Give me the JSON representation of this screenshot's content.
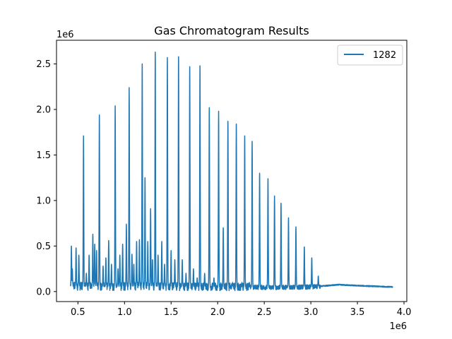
{
  "chart_data": {
    "type": "line",
    "title": "Gas Chromatogram Results",
    "xlabel": "",
    "ylabel": "",
    "x_offset_label": "1e6",
    "y_offset_label": "1e6",
    "xlim": [
      0.27,
      4.03
    ],
    "ylim": [
      -0.11,
      2.76
    ],
    "x_ticks": [
      0.5,
      1.0,
      1.5,
      2.0,
      2.5,
      3.0,
      3.5,
      4.0
    ],
    "x_tick_labels": [
      "0.5",
      "1.0",
      "1.5",
      "2.0",
      "2.5",
      "3.0",
      "3.5",
      "4.0"
    ],
    "y_ticks": [
      0.0,
      0.5,
      1.0,
      1.5,
      2.0,
      2.5
    ],
    "y_tick_labels": [
      "0.0",
      "0.5",
      "1.0",
      "1.5",
      "2.0",
      "2.5"
    ],
    "grid": false,
    "legend_position": "top-right",
    "line_color": "#1f77b4",
    "series": [
      {
        "name": "1282",
        "x_range": [
          0.42,
          3.88
        ],
        "baseline": [
          [
            0.42,
            0.06
          ],
          [
            0.8,
            0.055
          ],
          [
            1.2,
            0.06
          ],
          [
            1.6,
            0.055
          ],
          [
            2.0,
            0.05
          ],
          [
            2.6,
            0.045
          ],
          [
            3.0,
            0.05
          ],
          [
            3.3,
            0.075
          ],
          [
            3.5,
            0.065
          ],
          [
            3.88,
            0.05
          ]
        ],
        "peaks": [
          {
            "x": 0.43,
            "y": 0.5
          },
          {
            "x": 0.44,
            "y": 0.25
          },
          {
            "x": 0.48,
            "y": 0.48
          },
          {
            "x": 0.51,
            "y": 0.4
          },
          {
            "x": 0.56,
            "y": 1.71
          },
          {
            "x": 0.59,
            "y": 0.2
          },
          {
            "x": 0.62,
            "y": 0.4
          },
          {
            "x": 0.66,
            "y": 0.63
          },
          {
            "x": 0.68,
            "y": 0.52
          },
          {
            "x": 0.7,
            "y": 0.45
          },
          {
            "x": 0.73,
            "y": 1.94
          },
          {
            "x": 0.77,
            "y": 0.28
          },
          {
            "x": 0.8,
            "y": 0.37
          },
          {
            "x": 0.83,
            "y": 0.56
          },
          {
            "x": 0.86,
            "y": 0.3
          },
          {
            "x": 0.9,
            "y": 2.04
          },
          {
            "x": 0.93,
            "y": 0.25
          },
          {
            "x": 0.95,
            "y": 0.4
          },
          {
            "x": 0.98,
            "y": 0.52
          },
          {
            "x": 1.02,
            "y": 0.74
          },
          {
            "x": 1.05,
            "y": 2.24
          },
          {
            "x": 1.08,
            "y": 0.41
          },
          {
            "x": 1.1,
            "y": 0.3
          },
          {
            "x": 1.13,
            "y": 0.55
          },
          {
            "x": 1.16,
            "y": 0.57
          },
          {
            "x": 1.19,
            "y": 2.5
          },
          {
            "x": 1.22,
            "y": 1.25
          },
          {
            "x": 1.25,
            "y": 0.55
          },
          {
            "x": 1.28,
            "y": 0.91
          },
          {
            "x": 1.3,
            "y": 0.35
          },
          {
            "x": 1.33,
            "y": 2.63
          },
          {
            "x": 1.36,
            "y": 0.4
          },
          {
            "x": 1.4,
            "y": 0.55
          },
          {
            "x": 1.43,
            "y": 0.3
          },
          {
            "x": 1.46,
            "y": 2.57
          },
          {
            "x": 1.5,
            "y": 0.45
          },
          {
            "x": 1.54,
            "y": 0.35
          },
          {
            "x": 1.58,
            "y": 2.58
          },
          {
            "x": 1.62,
            "y": 0.35
          },
          {
            "x": 1.66,
            "y": 0.2
          },
          {
            "x": 1.7,
            "y": 2.47
          },
          {
            "x": 1.74,
            "y": 0.25
          },
          {
            "x": 1.78,
            "y": 0.15
          },
          {
            "x": 1.81,
            "y": 2.48
          },
          {
            "x": 1.86,
            "y": 0.2
          },
          {
            "x": 1.91,
            "y": 2.02
          },
          {
            "x": 1.96,
            "y": 0.15
          },
          {
            "x": 2.01,
            "y": 1.98
          },
          {
            "x": 2.06,
            "y": 0.7
          },
          {
            "x": 2.11,
            "y": 1.87
          },
          {
            "x": 2.16,
            "y": 0.1
          },
          {
            "x": 2.2,
            "y": 1.84
          },
          {
            "x": 2.26,
            "y": 0.1
          },
          {
            "x": 2.29,
            "y": 1.71
          },
          {
            "x": 2.34,
            "y": 0.1
          },
          {
            "x": 2.37,
            "y": 1.65
          },
          {
            "x": 2.45,
            "y": 1.3
          },
          {
            "x": 2.54,
            "y": 1.24
          },
          {
            "x": 2.61,
            "y": 1.05
          },
          {
            "x": 2.68,
            "y": 0.97
          },
          {
            "x": 2.76,
            "y": 0.81
          },
          {
            "x": 2.84,
            "y": 0.71
          },
          {
            "x": 2.93,
            "y": 0.49
          },
          {
            "x": 3.01,
            "y": 0.37
          },
          {
            "x": 3.08,
            "y": 0.17
          }
        ]
      }
    ]
  }
}
